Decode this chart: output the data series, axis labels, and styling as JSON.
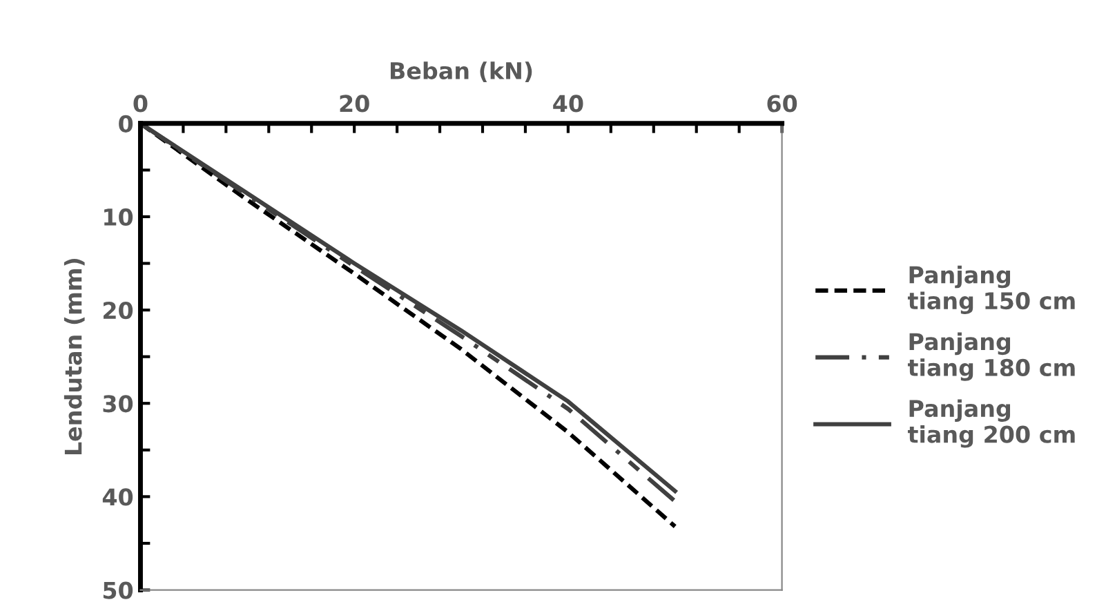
{
  "chart_data": {
    "type": "line",
    "xlabel": "Beban (kN)",
    "ylabel": "Lendutan (mm)",
    "xlim": [
      0,
      60
    ],
    "ylim": [
      50,
      0
    ],
    "xticks": [
      0,
      {
        "value": 4,
        "label": null
      },
      {
        "value": 8,
        "label": null
      },
      {
        "value": 12,
        "label": null
      },
      {
        "value": 16,
        "label": null
      },
      20,
      {
        "value": 24,
        "label": null
      },
      {
        "value": 28,
        "label": null
      },
      {
        "value": 32,
        "label": null
      },
      {
        "value": 36,
        "label": null
      },
      40,
      {
        "value": 44,
        "label": null
      },
      {
        "value": 48,
        "label": null
      },
      {
        "value": 52,
        "label": null
      },
      {
        "value": 56,
        "label": null
      },
      60
    ],
    "yticks": [
      0,
      {
        "value": 5,
        "label": null
      },
      10,
      {
        "value": 15,
        "label": null
      },
      20,
      {
        "value": 25,
        "label": null
      },
      30,
      {
        "value": 35,
        "label": null
      },
      40,
      {
        "value": 45,
        "label": null
      },
      50
    ],
    "x": [
      0,
      10,
      20,
      30,
      40,
      50
    ],
    "grid": false,
    "legend": "right",
    "marker": "none",
    "series": [
      {
        "name": "Panjang\ntiang 150 cm",
        "color": "#000000",
        "line_style": "dashed",
        "values": [
          0,
          8.2,
          16.1,
          24.2,
          33.1,
          43.2
        ]
      },
      {
        "name": "Panjang\ntiang 180 cm",
        "color": "#404040",
        "line_style": "dashdot",
        "values": [
          0,
          7.7,
          15.3,
          22.8,
          30.6,
          40.5
        ]
      },
      {
        "name": "Panjang\ntiang 200 cm",
        "color": "#404040",
        "line_style": "solid",
        "values": [
          0,
          7.5,
          15.0,
          22.2,
          29.8,
          39.4
        ]
      }
    ]
  }
}
